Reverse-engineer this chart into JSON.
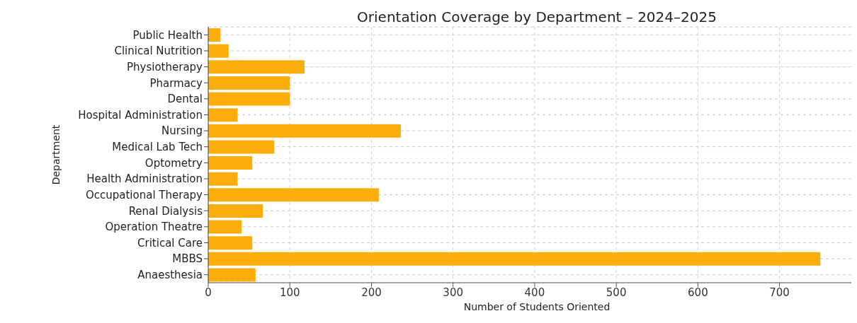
{
  "chart_data": {
    "type": "bar",
    "orientation": "horizontal",
    "title": "Orientation Coverage by Department – 2024–2025",
    "xlabel": "Number of Students Oriented",
    "ylabel": "Department",
    "categories": [
      "Public Health",
      "Clinical Nutrition",
      "Physiotherapy",
      "Pharmacy",
      "Dental",
      "Hospital Administration",
      "Nursing",
      "Medical Lab Tech",
      "Optometry",
      "Health Administration",
      "Occupational Therapy",
      "Renal Dialysis",
      "Operation Theatre",
      "Critical Care",
      "MBBS",
      "Anaesthesia"
    ],
    "values": [
      15,
      25,
      118,
      100,
      100,
      36,
      236,
      81,
      54,
      36,
      209,
      67,
      41,
      54,
      750,
      58
    ],
    "color": "#fbad0c",
    "xlim": [
      0,
      788
    ],
    "xticks": [
      0,
      100,
      200,
      300,
      400,
      500,
      600,
      700
    ],
    "grid": true
  }
}
